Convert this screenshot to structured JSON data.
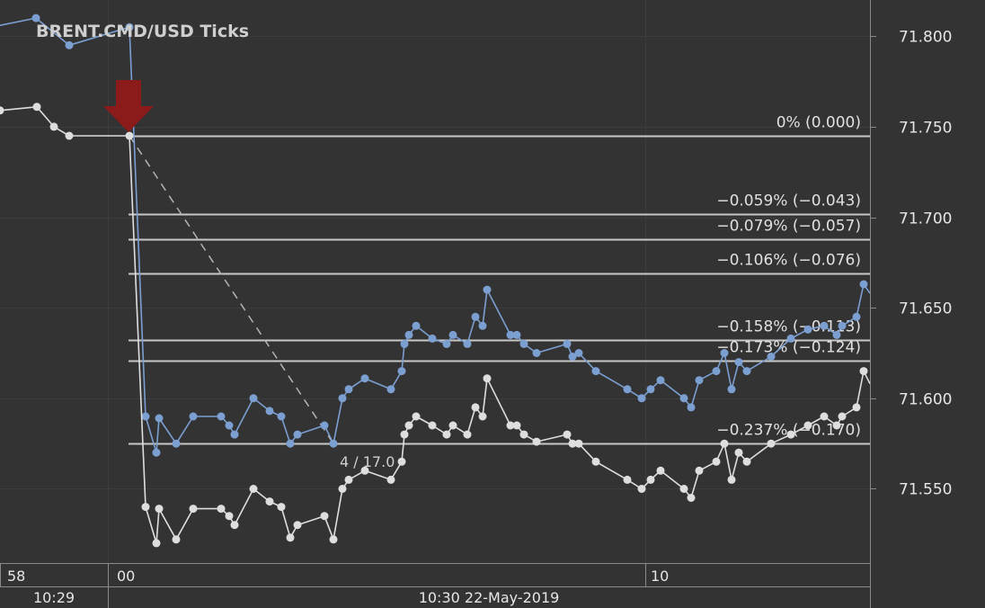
{
  "chart_data": {
    "type": "line",
    "title": "BRENT.CMD/USD  Ticks",
    "y_ticks": [
      "71.800",
      "71.750",
      "71.700",
      "71.650",
      "71.600",
      "71.550"
    ],
    "ylim": [
      71.509,
      71.82
    ],
    "x_ticks_upper": [
      "58",
      "00",
      "10"
    ],
    "x_ticks_lower": [
      "10:29",
      "10:30 22-May-2019"
    ],
    "series": [
      {
        "color": "#7b9fd1",
        "values": [
          71.81,
          71.795,
          71.805,
          71.59,
          71.57,
          71.589,
          71.575,
          71.59,
          71.59,
          71.585,
          71.58,
          71.6,
          71.593,
          71.59,
          71.575,
          71.58,
          71.585,
          71.575,
          71.6,
          71.605,
          71.611,
          71.605,
          71.615,
          71.63,
          71.635,
          71.64,
          71.633,
          71.63,
          71.635,
          71.63,
          71.645,
          71.64,
          71.66,
          71.635,
          71.635,
          71.63,
          71.625,
          71.63,
          71.623,
          71.625,
          71.615,
          71.605,
          71.6,
          71.605,
          71.61,
          71.6,
          71.595,
          71.61,
          71.615,
          71.625,
          71.605,
          71.62,
          71.615,
          71.623,
          71.633,
          71.638,
          71.64,
          71.635,
          71.64,
          71.645,
          71.663,
          71.658
        ]
      },
      {
        "color": "#dedede",
        "values": [
          71.759,
          71.761,
          71.75,
          71.745,
          71.745,
          71.54,
          71.52,
          71.539,
          71.522,
          71.539,
          71.539,
          71.535,
          71.53,
          71.55,
          71.543,
          71.54,
          71.523,
          71.53,
          71.535,
          71.522,
          71.55,
          71.555,
          71.56,
          71.555,
          71.565,
          71.58,
          71.585,
          71.59,
          71.585,
          71.58,
          71.585,
          71.58,
          71.595,
          71.59,
          71.611,
          71.585,
          71.585,
          71.58,
          71.576,
          71.58,
          71.575,
          71.575,
          71.565,
          71.555,
          71.55,
          71.555,
          71.56,
          71.55,
          71.545,
          71.56,
          71.565,
          71.575,
          71.555,
          71.57,
          71.565,
          71.575,
          71.58,
          71.585,
          71.59,
          71.585,
          71.59,
          71.595,
          71.615,
          71.608
        ]
      }
    ],
    "fibonacci_levels": [
      {
        "label": "0% (0.000)",
        "price": 71.745
      },
      {
        "label": "−0.059% (−0.043)",
        "price": 71.702
      },
      {
        "label": "−0.079% (−0.057)",
        "price": 71.688
      },
      {
        "label": "−0.106% (−0.076)",
        "price": 71.669
      },
      {
        "label": "−0.158% (−0.113)",
        "price": 71.632
      },
      {
        "label": "−0.173% (−0.124)",
        "price": 71.621
      },
      {
        "label": "−0.237% (−0.170)",
        "price": 71.575
      }
    ],
    "measurement_label": "4 / 17.0",
    "grid": true,
    "colors": {
      "background": "#333333",
      "grid": "#3d3d3d",
      "fib_line": "#c8c8c8",
      "arrow": "#8b1a1a",
      "axis_text": "#e6e6e6"
    }
  }
}
